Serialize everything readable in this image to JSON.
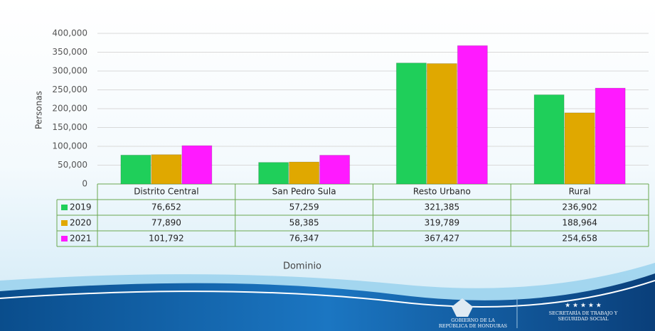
{
  "chart_data": {
    "type": "bar",
    "y_label": "Personas",
    "x_label": "Dominio",
    "categories": [
      "Distrito Central",
      "San Pedro Sula",
      "Resto Urbano",
      "Rural"
    ],
    "series": [
      {
        "name": "2019",
        "color": "#1fcf5a",
        "values": [
          76652,
          57259,
          321385,
          236902
        ],
        "value_labels": [
          "76,652",
          "57,259",
          "321,385",
          "236,902"
        ]
      },
      {
        "name": "2020",
        "color": "#e0a800",
        "values": [
          77890,
          58385,
          319789,
          188964
        ],
        "value_labels": [
          "77,890",
          "58,385",
          "319,789",
          "188,964"
        ]
      },
      {
        "name": "2021",
        "color": "#ff1aff",
        "values": [
          101792,
          76347,
          367427,
          254658
        ],
        "value_labels": [
          "101,792",
          "76,347",
          "367,427",
          "254,658"
        ]
      }
    ],
    "ylim": [
      0,
      400000
    ],
    "yticks": [
      0,
      {
        "value": 50000,
        "label": "50,000"
      },
      {
        "value": 100000,
        "label": "100,000"
      },
      {
        "value": 150000,
        "label": "150,000"
      },
      {
        "value": 200000,
        "label": "200,000"
      },
      {
        "value": 250000,
        "label": "250,000"
      },
      {
        "value": 300000,
        "label": "300,000"
      },
      {
        "value": 350000,
        "label": "350,000"
      },
      {
        "value": 400000,
        "label": "400,000"
      }
    ],
    "grid": true
  },
  "footer": {
    "left_line1": "GOBIERNO DE LA",
    "left_line2": "REPÚBLICA DE HONDURAS",
    "right_line1": "SECRETARÍA DE TRABAJO Y",
    "right_line2": "SEGURIDAD SOCIAL"
  }
}
